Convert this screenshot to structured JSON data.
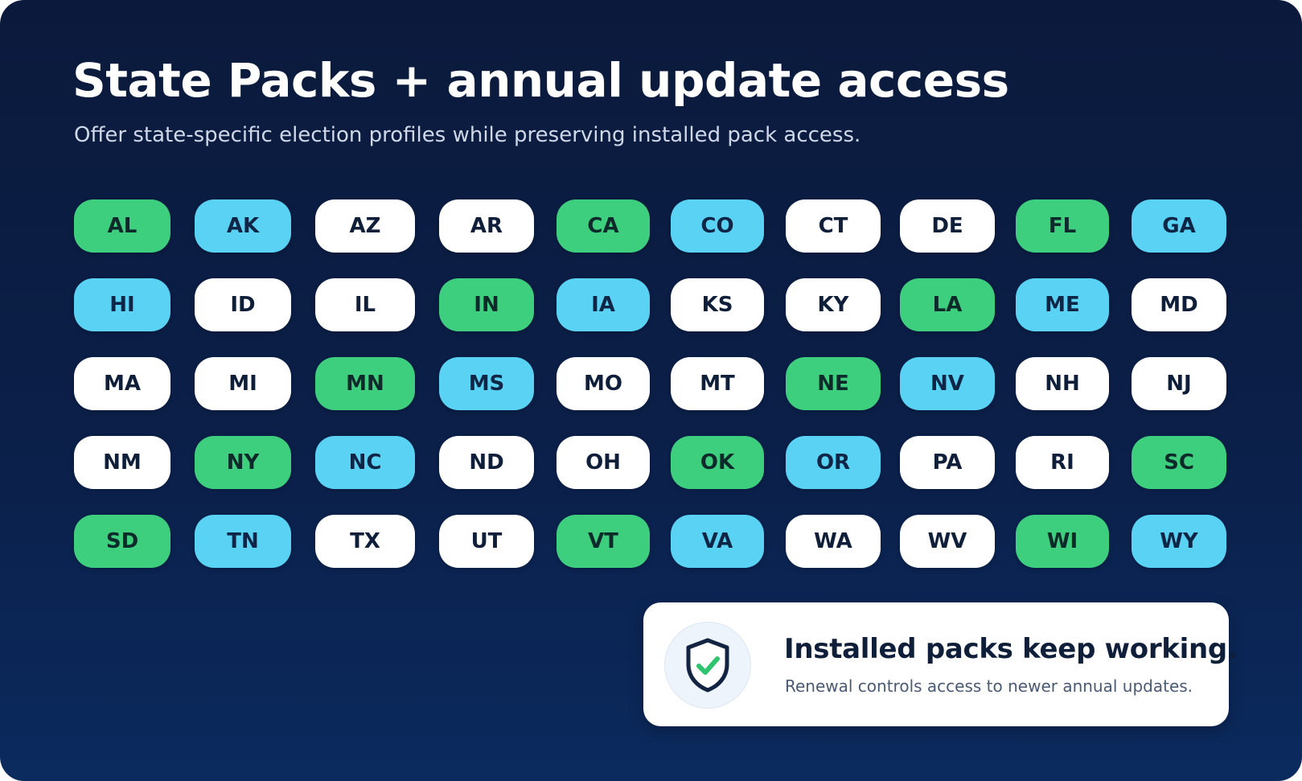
{
  "header": {
    "title": "State Packs + annual update access",
    "subtitle": "Offer state-specific election profiles while preserving installed pack access."
  },
  "states": [
    {
      "code": "AL",
      "status": "green"
    },
    {
      "code": "AK",
      "status": "blue"
    },
    {
      "code": "AZ",
      "status": "white"
    },
    {
      "code": "AR",
      "status": "white"
    },
    {
      "code": "CA",
      "status": "green"
    },
    {
      "code": "CO",
      "status": "blue"
    },
    {
      "code": "CT",
      "status": "white"
    },
    {
      "code": "DE",
      "status": "white"
    },
    {
      "code": "FL",
      "status": "green"
    },
    {
      "code": "GA",
      "status": "blue"
    },
    {
      "code": "HI",
      "status": "blue"
    },
    {
      "code": "ID",
      "status": "white"
    },
    {
      "code": "IL",
      "status": "white"
    },
    {
      "code": "IN",
      "status": "green"
    },
    {
      "code": "IA",
      "status": "blue"
    },
    {
      "code": "KS",
      "status": "white"
    },
    {
      "code": "KY",
      "status": "white"
    },
    {
      "code": "LA",
      "status": "green"
    },
    {
      "code": "ME",
      "status": "blue"
    },
    {
      "code": "MD",
      "status": "white"
    },
    {
      "code": "MA",
      "status": "white"
    },
    {
      "code": "MI",
      "status": "white"
    },
    {
      "code": "MN",
      "status": "green"
    },
    {
      "code": "MS",
      "status": "blue"
    },
    {
      "code": "MO",
      "status": "white"
    },
    {
      "code": "MT",
      "status": "white"
    },
    {
      "code": "NE",
      "status": "green"
    },
    {
      "code": "NV",
      "status": "blue"
    },
    {
      "code": "NH",
      "status": "white"
    },
    {
      "code": "NJ",
      "status": "white"
    },
    {
      "code": "NM",
      "status": "white"
    },
    {
      "code": "NY",
      "status": "green"
    },
    {
      "code": "NC",
      "status": "blue"
    },
    {
      "code": "ND",
      "status": "white"
    },
    {
      "code": "OH",
      "status": "white"
    },
    {
      "code": "OK",
      "status": "green"
    },
    {
      "code": "OR",
      "status": "blue"
    },
    {
      "code": "PA",
      "status": "white"
    },
    {
      "code": "RI",
      "status": "white"
    },
    {
      "code": "SC",
      "status": "green"
    },
    {
      "code": "SD",
      "status": "green"
    },
    {
      "code": "TN",
      "status": "blue"
    },
    {
      "code": "TX",
      "status": "white"
    },
    {
      "code": "UT",
      "status": "white"
    },
    {
      "code": "VT",
      "status": "green"
    },
    {
      "code": "VA",
      "status": "blue"
    },
    {
      "code": "WA",
      "status": "white"
    },
    {
      "code": "WV",
      "status": "white"
    },
    {
      "code": "WI",
      "status": "green"
    },
    {
      "code": "WY",
      "status": "blue"
    }
  ],
  "colors": {
    "green": "#3ecf7e",
    "blue": "#5ad2f4",
    "white": "#ffffff",
    "background": "#0b1f48",
    "check": "#2fc46f"
  },
  "callout": {
    "icon": "shield-check-icon",
    "title": "Installed packs keep working.",
    "text": "Renewal controls access to newer annual updates."
  }
}
